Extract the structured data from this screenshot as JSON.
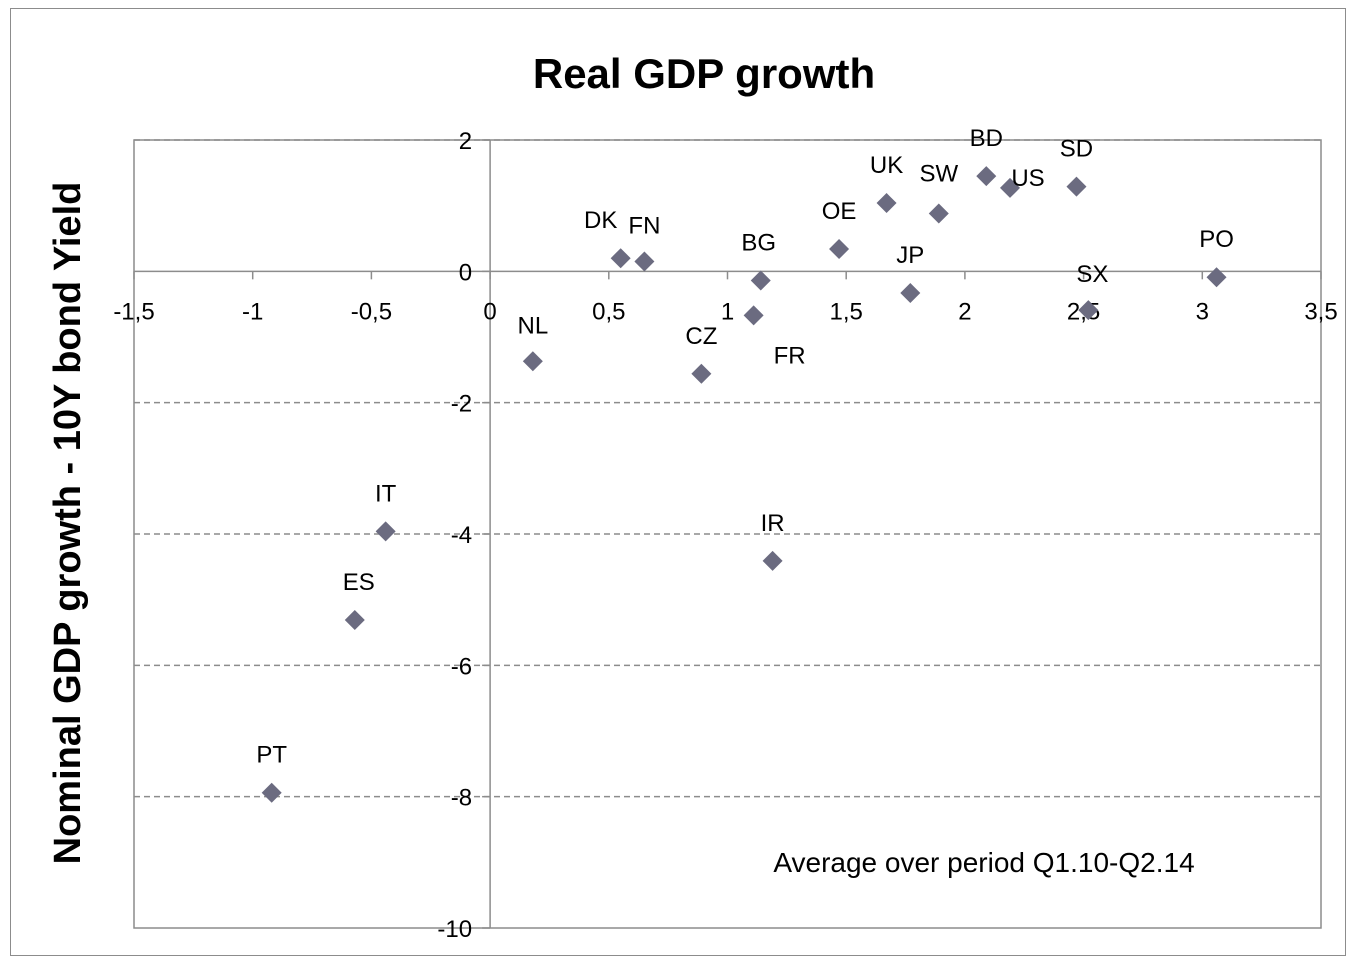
{
  "chart_data": {
    "type": "scatter",
    "title": "Real GDP growth",
    "ylabel": "Nominal GDP growth  - 10Y bond Yield",
    "annotation": "Average over period Q1.10-Q2.14",
    "xlim": [
      -1.5,
      3.5
    ],
    "ylim": [
      -10,
      2
    ],
    "xticks": [
      "-1,5",
      "-1",
      "-0,5",
      "0",
      "0,5",
      "1",
      "1,5",
      "2",
      "2,5",
      "3",
      "3,5"
    ],
    "xtick_values": [
      -1.5,
      -1,
      -0.5,
      0,
      0.5,
      1,
      1.5,
      2,
      2.5,
      3,
      3.5
    ],
    "yticks": [
      "2",
      "0",
      "-2",
      "-4",
      "-6",
      "-8",
      "-10"
    ],
    "ytick_values": [
      2,
      0,
      -2,
      -4,
      -6,
      -8,
      -10
    ],
    "grid": "horizontal dashed",
    "marker_color": "#6b6b80",
    "points": [
      {
        "label": "DK",
        "x": 0.55,
        "y": 0.2
      },
      {
        "label": "FN",
        "x": 0.65,
        "y": 0.15
      },
      {
        "label": "NL",
        "x": 0.18,
        "y": -1.37
      },
      {
        "label": "CZ",
        "x": 0.89,
        "y": -1.56
      },
      {
        "label": "BG",
        "x": 1.14,
        "y": -0.14
      },
      {
        "label": "FR",
        "x": 1.11,
        "y": -0.67
      },
      {
        "label": "OE",
        "x": 1.47,
        "y": 0.34
      },
      {
        "label": "UK",
        "x": 1.67,
        "y": 1.04
      },
      {
        "label": "JP",
        "x": 1.77,
        "y": -0.33
      },
      {
        "label": "SW",
        "x": 1.89,
        "y": 0.88
      },
      {
        "label": "BD",
        "x": 2.09,
        "y": 1.45
      },
      {
        "label": "US",
        "x": 2.19,
        "y": 1.27
      },
      {
        "label": "SD",
        "x": 2.47,
        "y": 1.29
      },
      {
        "label": "SX",
        "x": 2.52,
        "y": -0.59
      },
      {
        "label": "PO",
        "x": 3.06,
        "y": -0.09
      },
      {
        "label": "IT",
        "x": -0.44,
        "y": -3.96
      },
      {
        "label": "ES",
        "x": -0.57,
        "y": -5.31
      },
      {
        "label": "PT",
        "x": -0.92,
        "y": -7.94
      },
      {
        "label": "IR",
        "x": 1.19,
        "y": -4.41
      }
    ]
  }
}
